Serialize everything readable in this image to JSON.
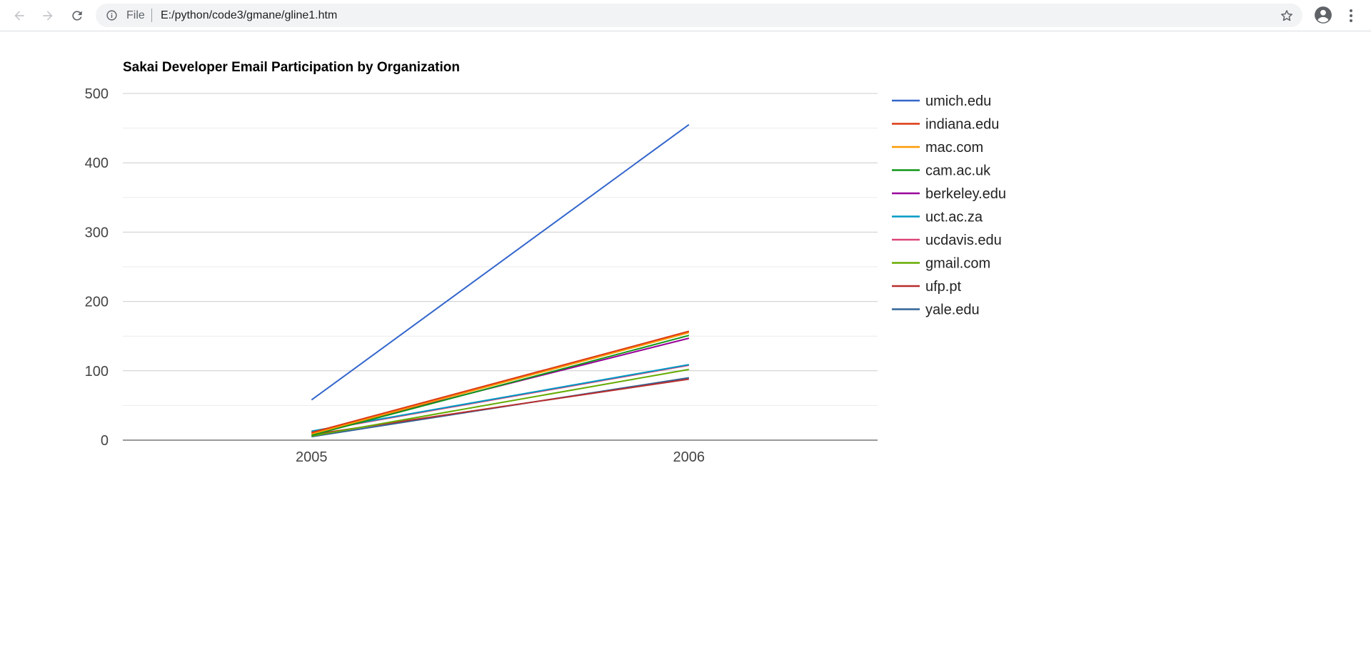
{
  "browser": {
    "scheme_label": "File",
    "url": "E:/python/code3/gmane/gline1.htm",
    "icons": {
      "back": "arrow-left-icon",
      "forward": "arrow-right-icon",
      "reload": "reload-icon",
      "site_info": "info-icon",
      "bookmark": "star-icon",
      "profile": "account-circle-icon",
      "menu": "vertical-dots-icon"
    }
  },
  "chart_data": {
    "type": "line",
    "title": "Sakai Developer Email Participation by Organization",
    "xlabel": "",
    "ylabel": "",
    "categories": [
      "2005",
      "2006"
    ],
    "ylim": [
      0,
      500
    ],
    "yticks": [
      0,
      100,
      200,
      300,
      400,
      500
    ],
    "gridlines": true,
    "minor_gridlines": true,
    "legend_position": "right",
    "series": [
      {
        "name": "umich.edu",
        "color": "#3366cc",
        "values": [
          58,
          455
        ]
      },
      {
        "name": "indiana.edu",
        "color": "#dc3912",
        "values": [
          11,
          157
        ]
      },
      {
        "name": "mac.com",
        "color": "#ff9900",
        "values": [
          9,
          155
        ]
      },
      {
        "name": "cam.ac.uk",
        "color": "#109618",
        "values": [
          7,
          151
        ]
      },
      {
        "name": "berkeley.edu",
        "color": "#990099",
        "values": [
          10,
          147
        ]
      },
      {
        "name": "uct.ac.za",
        "color": "#0099c6",
        "values": [
          13,
          109
        ]
      },
      {
        "name": "ucdavis.edu",
        "color": "#dd4477",
        "values": [
          12,
          108
        ]
      },
      {
        "name": "gmail.com",
        "color": "#66aa00",
        "values": [
          6,
          102
        ]
      },
      {
        "name": "ufp.pt",
        "color": "#b82e2e",
        "values": [
          8,
          88
        ]
      },
      {
        "name": "yale.edu",
        "color": "#316395",
        "values": [
          5,
          90
        ]
      }
    ]
  }
}
